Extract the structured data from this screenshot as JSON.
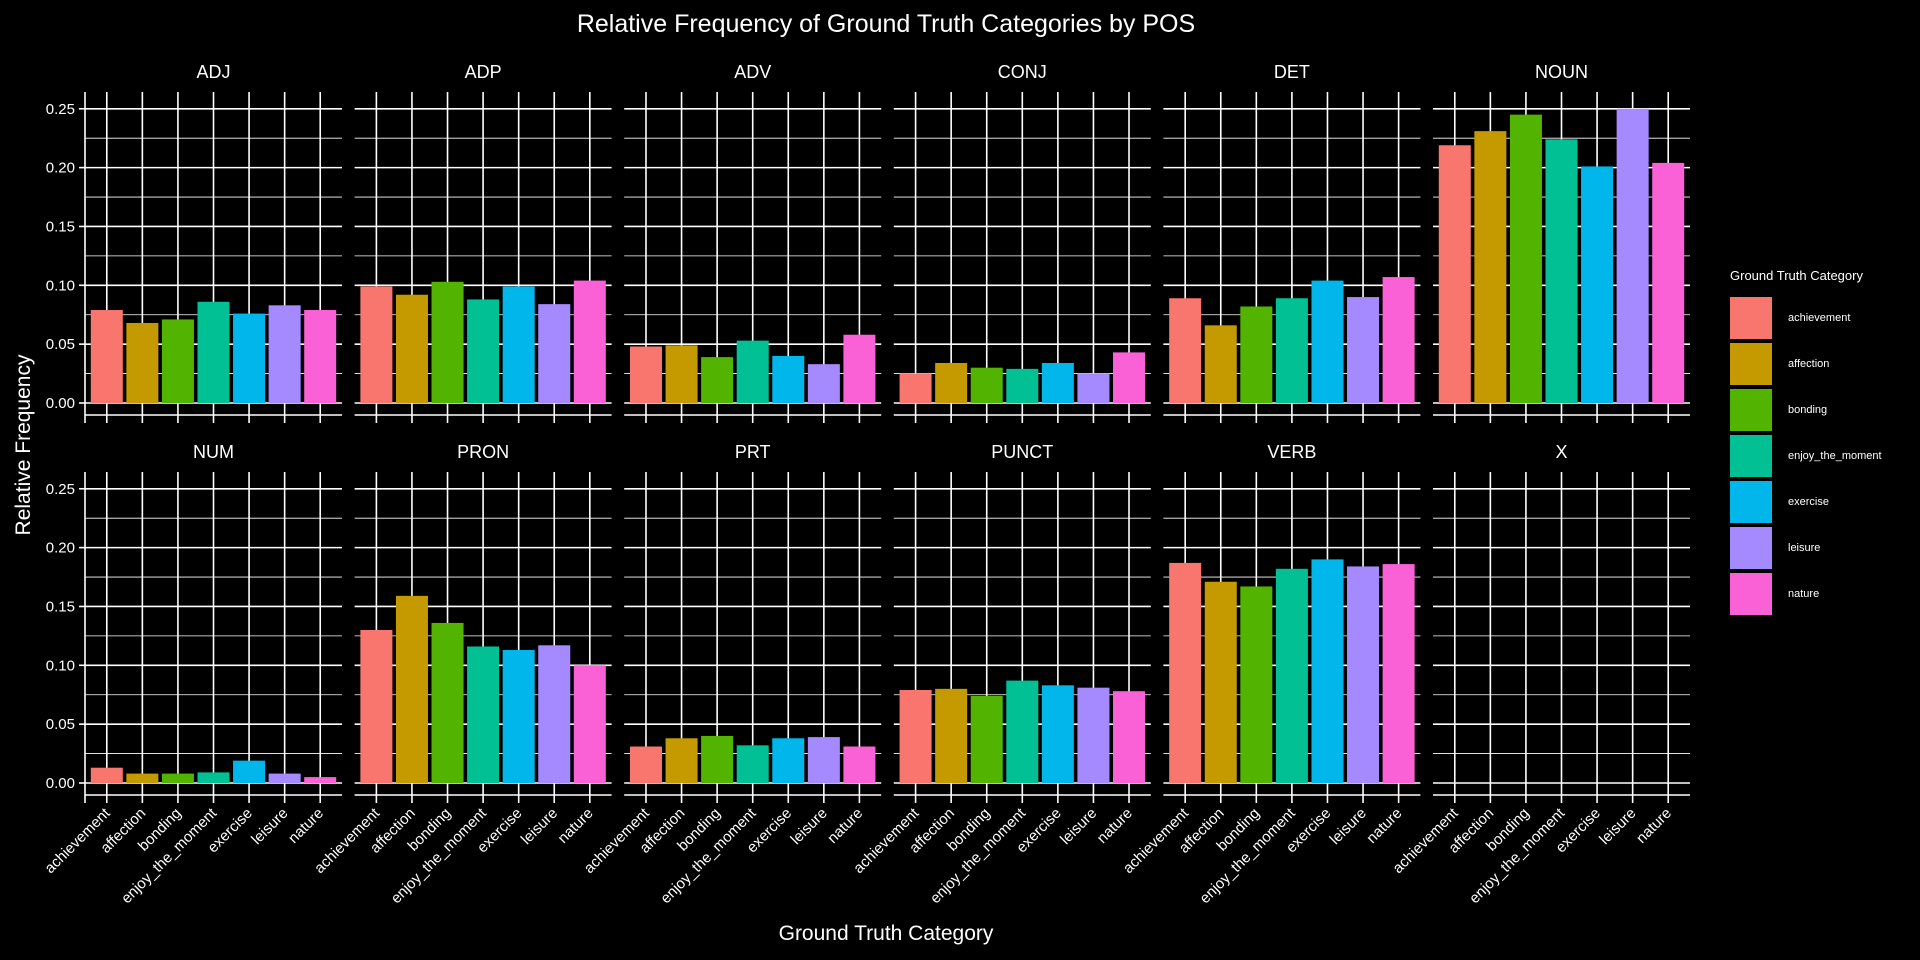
{
  "chart_data": {
    "type": "bar",
    "title": "Relative Frequency of Ground Truth Categories by POS",
    "xlabel": "Ground Truth Category",
    "ylabel": "Relative Frequency",
    "ylim": [
      0,
      0.26
    ],
    "yticks": [
      "0.00",
      "0.05",
      "0.10",
      "0.15",
      "0.20",
      "0.25"
    ],
    "grid": true,
    "legend_position": "right",
    "legend_title": "Ground Truth Category",
    "categories": [
      "achievement",
      "affection",
      "bonding",
      "enjoy_the_moment",
      "exercise",
      "leisure",
      "nature"
    ],
    "colors": [
      "#F8766D",
      "#C49A00",
      "#53B400",
      "#00C094",
      "#00B6EB",
      "#A58AFF",
      "#FB61D7"
    ],
    "panels": [
      {
        "name": "ADJ",
        "values": [
          0.079,
          0.068,
          0.071,
          0.086,
          0.076,
          0.083,
          0.079
        ]
      },
      {
        "name": "ADP",
        "values": [
          0.099,
          0.092,
          0.103,
          0.088,
          0.099,
          0.084,
          0.104
        ]
      },
      {
        "name": "ADV",
        "values": [
          0.048,
          0.049,
          0.039,
          0.053,
          0.04,
          0.033,
          0.058
        ]
      },
      {
        "name": "CONJ",
        "values": [
          0.025,
          0.034,
          0.03,
          0.029,
          0.034,
          0.025,
          0.043
        ]
      },
      {
        "name": "DET",
        "values": [
          0.089,
          0.066,
          0.082,
          0.089,
          0.104,
          0.09,
          0.107
        ]
      },
      {
        "name": "NOUN",
        "values": [
          0.219,
          0.231,
          0.245,
          0.224,
          0.201,
          0.25,
          0.204
        ]
      },
      {
        "name": "NUM",
        "values": [
          0.013,
          0.008,
          0.008,
          0.009,
          0.019,
          0.008,
          0.005
        ]
      },
      {
        "name": "PRON",
        "values": [
          0.13,
          0.159,
          0.136,
          0.116,
          0.113,
          0.117,
          0.1
        ]
      },
      {
        "name": "PRT",
        "values": [
          0.031,
          0.038,
          0.04,
          0.032,
          0.038,
          0.039,
          0.031
        ]
      },
      {
        "name": "PUNCT",
        "values": [
          0.079,
          0.08,
          0.074,
          0.087,
          0.083,
          0.081,
          0.078
        ]
      },
      {
        "name": "VERB",
        "values": [
          0.187,
          0.171,
          0.167,
          0.182,
          0.19,
          0.184,
          0.186
        ]
      },
      {
        "name": "X",
        "values": [
          0,
          0,
          0,
          0,
          0,
          0,
          0
        ]
      }
    ]
  }
}
